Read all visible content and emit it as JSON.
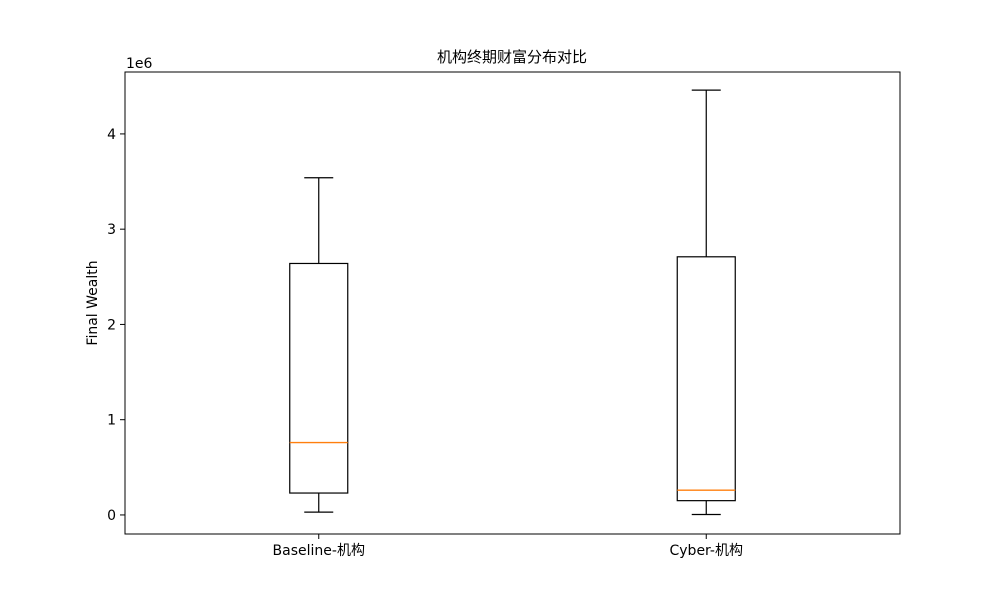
{
  "chart_data": {
    "type": "box",
    "title": "机构终期财富分布对比",
    "xlabel": "",
    "ylabel": "Final Wealth",
    "y_offset_text": "1e6",
    "y_scale": 1000000,
    "ylim": [
      -200000,
      4650000
    ],
    "yticks": [
      0,
      1,
      2,
      3,
      4
    ],
    "ytick_labels": [
      "0",
      "1",
      "2",
      "3",
      "4"
    ],
    "grid": false,
    "categories": [
      "Baseline-机构",
      "Cyber-机构"
    ],
    "boxes": [
      {
        "name": "Baseline-机构",
        "whisker_low": 30000,
        "q1": 230000,
        "median": 760000,
        "q3": 2640000,
        "whisker_high": 3540000
      },
      {
        "name": "Cyber-机构",
        "whisker_low": 5000,
        "q1": 150000,
        "median": 260000,
        "q3": 2710000,
        "whisker_high": 4460000
      }
    ],
    "colors": {
      "box": "#000000",
      "median": "#ff7f0e",
      "axes": "#000000"
    }
  }
}
